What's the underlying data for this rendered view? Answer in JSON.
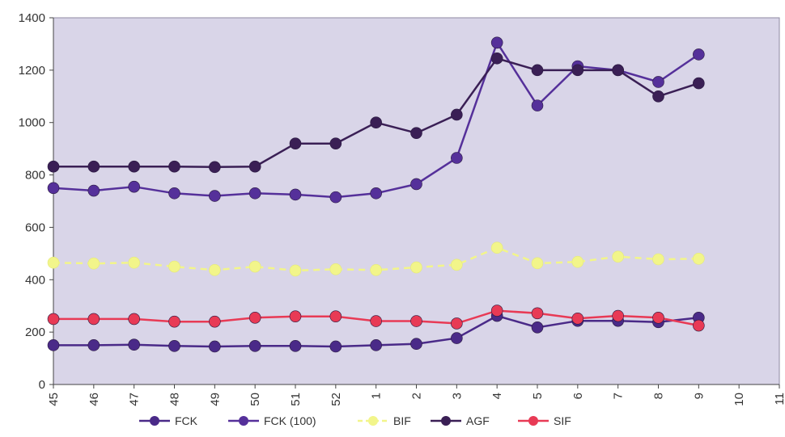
{
  "chart_data": {
    "type": "line",
    "title": "",
    "xlabel": "",
    "ylabel": "",
    "categories": [
      "45",
      "46",
      "47",
      "48",
      "49",
      "50",
      "51",
      "52",
      "1",
      "2",
      "3",
      "4",
      "5",
      "6",
      "7",
      "8",
      "9",
      "10",
      "11"
    ],
    "ylim": [
      0,
      1400
    ],
    "yticks": [
      0,
      200,
      400,
      600,
      800,
      1000,
      1200,
      1400
    ],
    "grid": false,
    "legend_position": "bottom",
    "plot_background": "#d9d5e8",
    "series": [
      {
        "name": "FCK",
        "color": "#4a2a88",
        "dashed": false,
        "values": [
          150,
          150,
          152,
          147,
          145,
          147,
          147,
          145,
          150,
          155,
          177,
          262,
          218,
          243,
          243,
          238,
          255,
          null,
          null
        ]
      },
      {
        "name": "FCK (100)",
        "color": "#55309a",
        "dashed": false,
        "values": [
          750,
          740,
          755,
          730,
          720,
          730,
          725,
          715,
          730,
          765,
          865,
          1305,
          1065,
          1215,
          1200,
          1155,
          1260,
          null,
          null
        ]
      },
      {
        "name": "BIF",
        "color": "#f2f58a",
        "dashed": true,
        "values": [
          465,
          462,
          465,
          450,
          437,
          450,
          435,
          440,
          437,
          447,
          457,
          522,
          463,
          468,
          488,
          478,
          480,
          null,
          null
        ]
      },
      {
        "name": "AGF",
        "color": "#3a1f55",
        "dashed": false,
        "values": [
          832,
          832,
          832,
          832,
          830,
          832,
          920,
          920,
          1000,
          960,
          1030,
          1245,
          1200,
          1200,
          1200,
          1100,
          1150,
          null,
          null
        ]
      },
      {
        "name": "SIF",
        "color": "#e83a55",
        "dashed": false,
        "values": [
          250,
          250,
          250,
          240,
          240,
          255,
          260,
          260,
          242,
          242,
          233,
          282,
          272,
          252,
          262,
          255,
          225,
          null,
          null
        ]
      }
    ]
  }
}
